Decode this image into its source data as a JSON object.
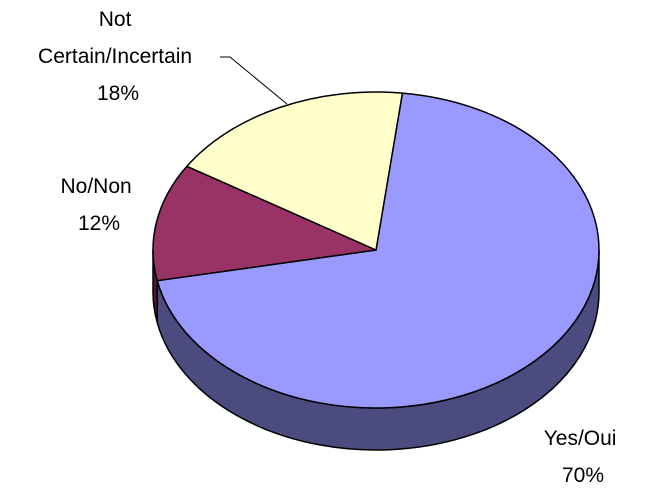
{
  "chart_data": {
    "type": "pie",
    "style": "3d-exploded-none",
    "categories": [
      "Yes/Oui",
      "No/Non",
      "Not Certain/Incertain"
    ],
    "values": [
      70,
      12,
      18
    ],
    "value_labels": [
      "70%",
      "12%",
      "18%"
    ],
    "label_lines": [
      [
        "Yes/Oui"
      ],
      [
        "No/Non"
      ],
      [
        "Not",
        "Certain/Incertain"
      ]
    ],
    "colors": [
      "#9999FF",
      "#993366",
      "#FFFFCC"
    ],
    "side_colors": [
      "#4B4B80",
      "#4B1A33",
      "#80806A"
    ],
    "title": "",
    "legend": "none"
  }
}
